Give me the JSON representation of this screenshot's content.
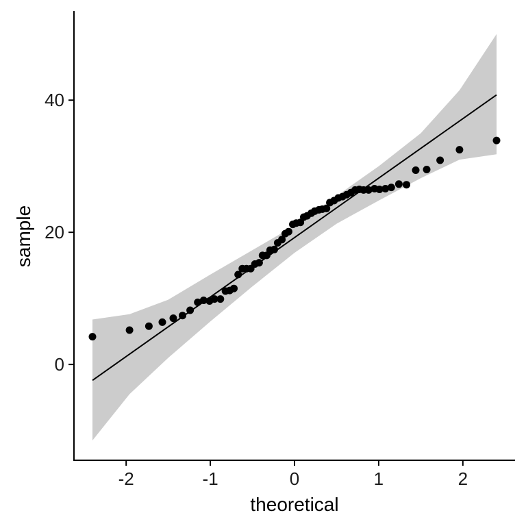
{
  "chart_data": {
    "type": "scatter",
    "title": "",
    "xlabel": "theoretical",
    "ylabel": "sample",
    "xlim": [
      -2.62,
      2.62
    ],
    "ylim": [
      -14.5,
      53.5
    ],
    "x_ticks": [
      -2,
      -1,
      0,
      1,
      2
    ],
    "x_tick_labels": [
      "-2",
      "-1",
      "0",
      "1",
      "2"
    ],
    "y_ticks": [
      0,
      20,
      40
    ],
    "y_tick_labels": [
      "0",
      "20",
      "40"
    ],
    "grid": false,
    "legend": "none",
    "reference_line": {
      "x": [
        -2.4,
        2.4
      ],
      "y": [
        -2.4,
        40.8
      ]
    },
    "confidence_band": {
      "x": [
        -2.4,
        -1.96,
        -1.5,
        -1.0,
        -0.5,
        0.0,
        0.5,
        1.0,
        1.5,
        1.96,
        2.4
      ],
      "upper": [
        6.8,
        7.6,
        9.8,
        13.6,
        17.3,
        21.0,
        25.5,
        30.0,
        35.0,
        41.5,
        50.0
      ],
      "lower": [
        -11.5,
        -4.5,
        1.0,
        6.5,
        11.8,
        16.9,
        21.3,
        24.8,
        28.2,
        31.0,
        31.8
      ]
    },
    "series": [
      {
        "x": [
          -2.4,
          -1.96,
          -1.73,
          -1.57,
          -1.44,
          -1.33,
          -1.24,
          -1.15,
          -1.08,
          -1.01,
          -0.95,
          -0.88,
          -0.82,
          -0.77,
          -0.72,
          -0.67,
          -0.62,
          -0.57,
          -0.52,
          -0.47,
          -0.42,
          -0.38,
          -0.33,
          -0.29,
          -0.24,
          -0.2,
          -0.15,
          -0.11,
          -0.07,
          -0.02,
          0.02,
          0.07,
          0.11,
          0.15,
          0.2,
          0.24,
          0.29,
          0.33,
          0.38,
          0.42,
          0.47,
          0.52,
          0.57,
          0.62,
          0.67,
          0.72,
          0.77,
          0.82,
          0.88,
          0.95,
          1.01,
          1.08,
          1.15,
          1.24,
          1.33,
          1.44,
          1.57,
          1.73,
          1.96,
          2.4
        ],
        "y": [
          4.2,
          5.2,
          5.8,
          6.4,
          7.0,
          7.4,
          8.2,
          9.4,
          9.7,
          9.6,
          9.9,
          9.9,
          11.1,
          11.2,
          11.5,
          13.6,
          14.5,
          14.5,
          14.5,
          15.2,
          15.4,
          16.5,
          16.5,
          17.3,
          17.4,
          18.4,
          18.9,
          19.8,
          20.1,
          21.2,
          21.4,
          21.5,
          22.3,
          22.5,
          22.9,
          23.2,
          23.4,
          23.5,
          23.6,
          24.5,
          24.8,
          25.2,
          25.4,
          25.7,
          26.0,
          26.4,
          26.5,
          26.4,
          26.4,
          26.6,
          26.5,
          26.6,
          26.8,
          27.3,
          27.2,
          29.4,
          29.5,
          30.9,
          32.5,
          33.9
        ]
      }
    ]
  }
}
